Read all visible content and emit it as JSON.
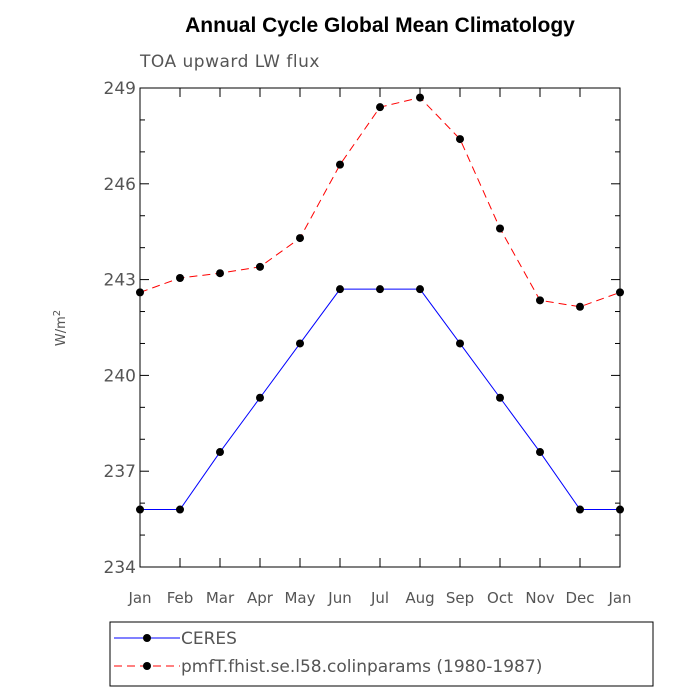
{
  "chart_data": {
    "type": "line",
    "title": "Annual Cycle Global Mean Climatology",
    "subtitle": "TOA upward LW flux",
    "ylabel_base": "W/m",
    "ylabel_sup": "2",
    "categories": [
      "Jan",
      "Feb",
      "Mar",
      "Apr",
      "May",
      "Jun",
      "Jul",
      "Aug",
      "Sep",
      "Oct",
      "Nov",
      "Dec",
      "Jan"
    ],
    "ylim": [
      234,
      249
    ],
    "yticks": [
      "234",
      "237",
      "240",
      "243",
      "246",
      "249"
    ],
    "series": [
      {
        "name": "CERES",
        "color": "#0000ff",
        "dash": "solid",
        "values": [
          235.8,
          235.8,
          237.6,
          239.3,
          241.0,
          242.7,
          242.7,
          242.7,
          241.0,
          239.3,
          237.6,
          235.8,
          235.8
        ]
      },
      {
        "name": "pmfT.fhist.se.l58.colinparams (1980-1987)",
        "color": "#ff0000",
        "dash": "dashed",
        "values": [
          242.6,
          243.05,
          243.2,
          243.4,
          244.3,
          246.6,
          248.4,
          248.7,
          247.4,
          244.6,
          242.35,
          242.15,
          242.6
        ]
      }
    ]
  }
}
